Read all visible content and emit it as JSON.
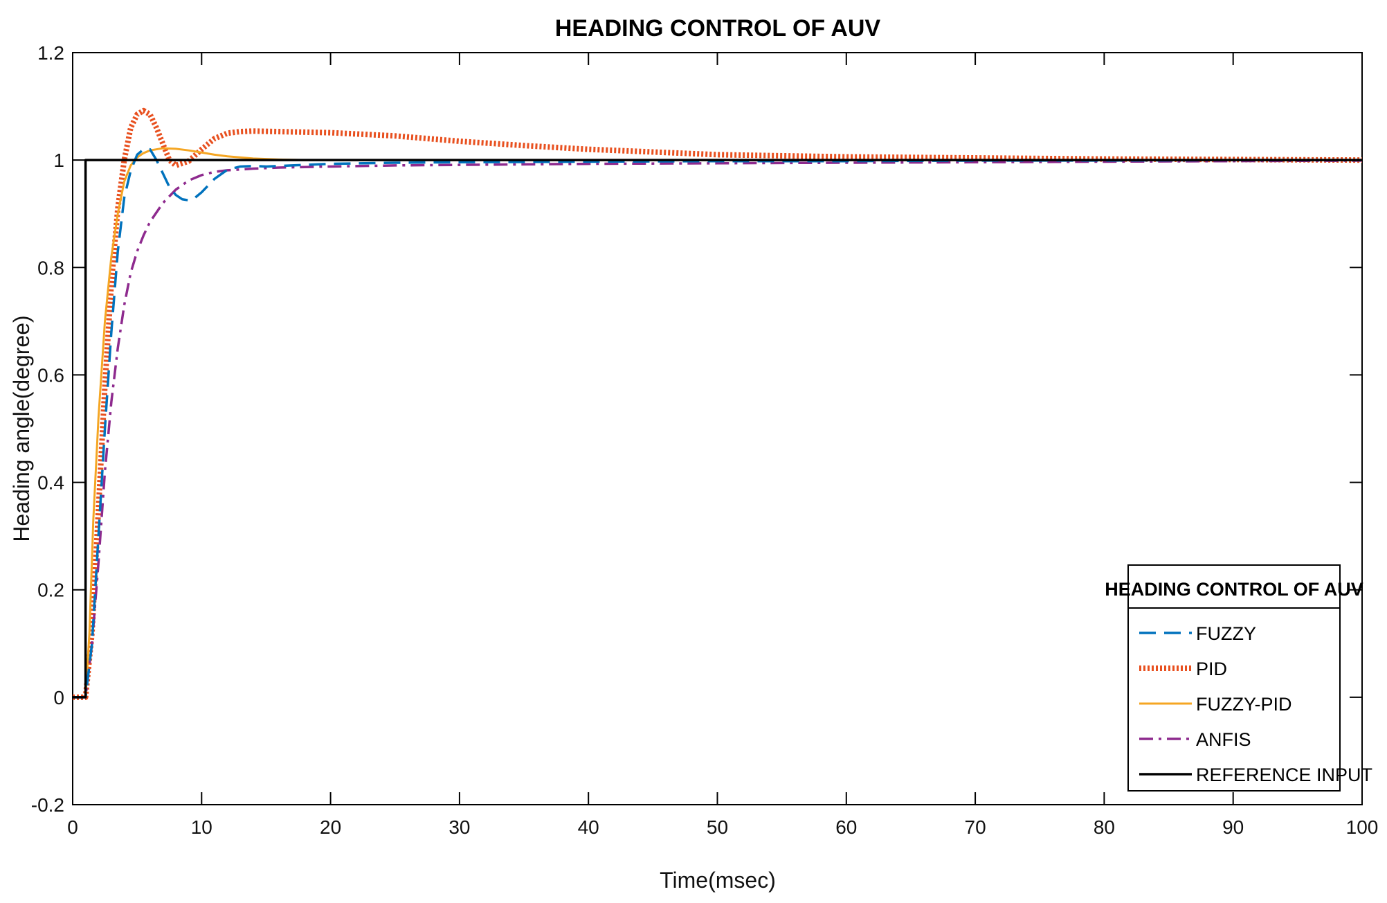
{
  "chart_data": {
    "type": "line",
    "title": "HEADING CONTROL OF AUV",
    "xlabel": "Time(msec)",
    "ylabel": "Heading angle(degree)",
    "xlim": [
      0,
      100
    ],
    "ylim": [
      -0.2,
      1.2
    ],
    "x_ticks": [
      0,
      10,
      20,
      30,
      40,
      50,
      60,
      70,
      80,
      90,
      100
    ],
    "x_tick_labels": [
      "0",
      "10",
      "20",
      "30",
      "40",
      "50",
      "60",
      "70",
      "80",
      "90",
      "100"
    ],
    "y_ticks": [
      -0.2,
      0,
      0.2,
      0.4,
      0.6,
      0.8,
      1,
      1.2
    ],
    "y_tick_labels": [
      "-0.2",
      "0",
      "0.2",
      "0.4",
      "0.6",
      "0.8",
      "1",
      "1.2"
    ],
    "grid": false,
    "legend": {
      "title": "HEADING CONTROL OF AUV",
      "position": "bottom-right"
    },
    "series": [
      {
        "name": "FUZZY",
        "color": "#0072BD",
        "style": "dashed",
        "x": [
          0,
          1,
          1.5,
          2,
          2.5,
          3,
          3.5,
          4,
          4.5,
          5,
          5.5,
          6,
          6.5,
          7,
          7.5,
          8,
          8.5,
          9,
          9.5,
          10,
          11,
          12,
          13,
          14,
          15,
          17,
          20,
          25,
          30,
          40,
          50,
          60,
          70,
          80,
          90,
          100
        ],
        "y": [
          0,
          0,
          0.1,
          0.3,
          0.5,
          0.68,
          0.83,
          0.93,
          0.98,
          1.01,
          1.02,
          1.02,
          1.0,
          0.975,
          0.95,
          0.935,
          0.927,
          0.925,
          0.93,
          0.94,
          0.965,
          0.982,
          0.988,
          0.989,
          0.988,
          0.99,
          0.993,
          0.995,
          0.996,
          0.997,
          0.998,
          0.998,
          0.999,
          0.999,
          1.0,
          1.0
        ]
      },
      {
        "name": "PID",
        "color": "#E8501F",
        "style": "dotted",
        "x": [
          0,
          1,
          1.5,
          2,
          2.5,
          3,
          3.5,
          4,
          4.5,
          5,
          5.5,
          6,
          6.5,
          7,
          7.5,
          8,
          9,
          10,
          11,
          12,
          13,
          14,
          16,
          20,
          25,
          30,
          35,
          40,
          45,
          50,
          60,
          70,
          80,
          90,
          100
        ],
        "y": [
          0,
          0,
          0.12,
          0.35,
          0.58,
          0.77,
          0.91,
          1.0,
          1.06,
          1.085,
          1.092,
          1.085,
          1.06,
          1.03,
          1.0,
          0.99,
          0.998,
          1.02,
          1.04,
          1.05,
          1.053,
          1.054,
          1.053,
          1.051,
          1.045,
          1.035,
          1.027,
          1.02,
          1.015,
          1.01,
          1.006,
          1.004,
          1.002,
          1.001,
          1.0
        ]
      },
      {
        "name": "FUZZY-PID",
        "color": "#F5A623",
        "style": "solid",
        "x": [
          0,
          1,
          1.3,
          1.6,
          2,
          2.5,
          3,
          3.5,
          4,
          4.5,
          5,
          5.5,
          6,
          7,
          8,
          9,
          10,
          11,
          12,
          14,
          16,
          18,
          20,
          25,
          30,
          40,
          50,
          60,
          70,
          80,
          90,
          100
        ],
        "y": [
          0,
          0,
          0.12,
          0.33,
          0.52,
          0.7,
          0.82,
          0.9,
          0.96,
          0.99,
          1.005,
          1.013,
          1.018,
          1.022,
          1.021,
          1.018,
          1.014,
          1.01,
          1.007,
          1.003,
          1.001,
          1.0,
          1.0,
          1.0,
          1.0,
          1.0,
          1.0,
          1.0,
          1.0,
          1.0,
          1.0,
          1.0
        ]
      },
      {
        "name": "ANFIS",
        "color": "#8E2A8E",
        "style": "dashdot",
        "x": [
          0,
          1,
          1.5,
          2,
          2.5,
          3,
          3.5,
          4,
          4.5,
          5,
          5.5,
          6,
          7,
          8,
          9,
          10,
          11,
          12,
          14,
          16,
          20,
          25,
          30,
          40,
          50,
          60,
          70,
          80,
          90,
          100
        ],
        "y": [
          0,
          0,
          0.1,
          0.25,
          0.42,
          0.55,
          0.65,
          0.73,
          0.79,
          0.83,
          0.86,
          0.885,
          0.92,
          0.945,
          0.962,
          0.972,
          0.978,
          0.981,
          0.984,
          0.986,
          0.988,
          0.99,
          0.991,
          0.993,
          0.994,
          0.995,
          0.996,
          0.997,
          0.998,
          0.999
        ]
      },
      {
        "name": "REFERENCE INPUT",
        "color": "#000000",
        "style": "solid",
        "x": [
          0,
          1,
          1,
          100
        ],
        "y": [
          0,
          0,
          1,
          1
        ]
      }
    ]
  }
}
